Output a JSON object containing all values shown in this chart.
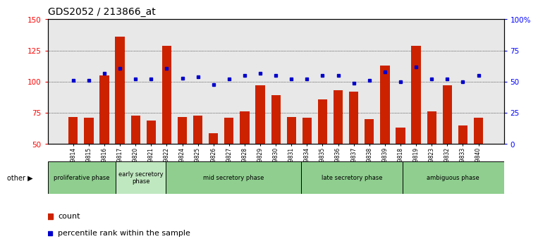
{
  "title": "GDS2052 / 213866_at",
  "samples": [
    "GSM109814",
    "GSM109815",
    "GSM109816",
    "GSM109817",
    "GSM109820",
    "GSM109821",
    "GSM109822",
    "GSM109824",
    "GSM109825",
    "GSM109826",
    "GSM109827",
    "GSM109828",
    "GSM109829",
    "GSM109830",
    "GSM109831",
    "GSM109834",
    "GSM109835",
    "GSM109836",
    "GSM109837",
    "GSM109838",
    "GSM109839",
    "GSM109818",
    "GSM109819",
    "GSM109823",
    "GSM109832",
    "GSM109833",
    "GSM109840"
  ],
  "counts": [
    72,
    71,
    105,
    136,
    73,
    69,
    129,
    72,
    73,
    59,
    71,
    76,
    97,
    89,
    72,
    71,
    86,
    93,
    92,
    70,
    113,
    63,
    129,
    76,
    97,
    65,
    71
  ],
  "percentiles": [
    51,
    51,
    57,
    61,
    52,
    52,
    61,
    53,
    54,
    48,
    52,
    55,
    57,
    55,
    52,
    52,
    55,
    55,
    49,
    51,
    58,
    50,
    62,
    52,
    52,
    50,
    55
  ],
  "phases": [
    {
      "label": "proliferative phase",
      "start": 0,
      "end": 4,
      "color": "#8fce8f"
    },
    {
      "label": "early secretory\nphase",
      "start": 4,
      "end": 7,
      "color": "#c0e8c0"
    },
    {
      "label": "mid secretory phase",
      "start": 7,
      "end": 15,
      "color": "#8fce8f"
    },
    {
      "label": "late secretory phase",
      "start": 15,
      "end": 21,
      "color": "#8fce8f"
    },
    {
      "label": "ambiguous phase",
      "start": 21,
      "end": 27,
      "color": "#8fce8f"
    }
  ],
  "bar_color": "#cc2200",
  "dot_color": "#0000cc",
  "ylim_left": [
    50,
    150
  ],
  "ylim_right": [
    0,
    100
  ],
  "yticks_left": [
    50,
    75,
    100,
    125,
    150
  ],
  "yticks_right": [
    0,
    25,
    50,
    75,
    100
  ],
  "ytick_labels_right": [
    "0",
    "25",
    "50",
    "75",
    "100%"
  ],
  "grid_values": [
    75,
    100,
    125
  ],
  "bg_color": "#e8e8e8",
  "title_fontsize": 10
}
